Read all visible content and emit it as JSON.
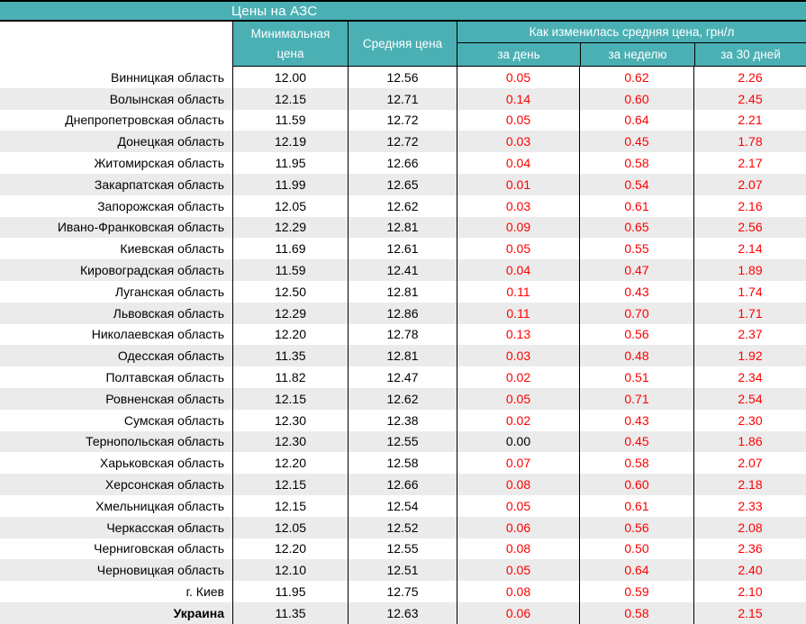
{
  "chart_data": {
    "type": "table",
    "title": "Цены на АЗС",
    "columns": {
      "min": "Минимальная цена",
      "avg": "Средняя цена",
      "group": "Как изменилась средняя цена, грн/л",
      "day": "за день",
      "week": "за неделю",
      "month": "за 30 дней"
    },
    "colors": {
      "accent_teal": "#4BB0B4",
      "stripe_gray": "#EBEBEB",
      "delta_red": "#FF0000",
      "zero_delta_black": "#000000"
    },
    "rows": [
      {
        "region": "Винницкая область",
        "min": "12.00",
        "avg": "12.56",
        "day": "0.05",
        "week": "0.62",
        "month": "2.26"
      },
      {
        "region": "Волынская область",
        "min": "12.15",
        "avg": "12.71",
        "day": "0.14",
        "week": "0.60",
        "month": "2.45"
      },
      {
        "region": "Днепропетровская область",
        "min": "11.59",
        "avg": "12.72",
        "day": "0.05",
        "week": "0.64",
        "month": "2.21"
      },
      {
        "region": "Донецкая область",
        "min": "12.19",
        "avg": "12.72",
        "day": "0.03",
        "week": "0.45",
        "month": "1.78"
      },
      {
        "region": "Житомирская область",
        "min": "11.95",
        "avg": "12.66",
        "day": "0.04",
        "week": "0.58",
        "month": "2.17"
      },
      {
        "region": "Закарпатская область",
        "min": "11.99",
        "avg": "12.65",
        "day": "0.01",
        "week": "0.54",
        "month": "2.07"
      },
      {
        "region": "Запорожская область",
        "min": "12.05",
        "avg": "12.62",
        "day": "0.03",
        "week": "0.61",
        "month": "2.16"
      },
      {
        "region": "Ивано-Франковская область",
        "min": "12.29",
        "avg": "12.81",
        "day": "0.09",
        "week": "0.65",
        "month": "2.56"
      },
      {
        "region": "Киевская область",
        "min": "11.69",
        "avg": "12.61",
        "day": "0.05",
        "week": "0.55",
        "month": "2.14"
      },
      {
        "region": "Кировоградская область",
        "min": "11.59",
        "avg": "12.41",
        "day": "0.04",
        "week": "0.47",
        "month": "1.89"
      },
      {
        "region": "Луганская область",
        "min": "12.50",
        "avg": "12.81",
        "day": "0.11",
        "week": "0.43",
        "month": "1.74"
      },
      {
        "region": "Львовская область",
        "min": "12.29",
        "avg": "12.86",
        "day": "0.11",
        "week": "0.70",
        "month": "1.71"
      },
      {
        "region": "Николаевская область",
        "min": "12.20",
        "avg": "12.78",
        "day": "0.13",
        "week": "0.56",
        "month": "2.37"
      },
      {
        "region": "Одесская область",
        "min": "11.35",
        "avg": "12.81",
        "day": "0.03",
        "week": "0.48",
        "month": "1.92"
      },
      {
        "region": "Полтавская область",
        "min": "11.82",
        "avg": "12.47",
        "day": "0.02",
        "week": "0.51",
        "month": "2.34"
      },
      {
        "region": "Ровненская область",
        "min": "12.15",
        "avg": "12.62",
        "day": "0.05",
        "week": "0.71",
        "month": "2.54"
      },
      {
        "region": "Сумская область",
        "min": "12.30",
        "avg": "12.38",
        "day": "0.02",
        "week": "0.43",
        "month": "2.30"
      },
      {
        "region": "Тернопольская область",
        "min": "12.30",
        "avg": "12.55",
        "day": "0.00",
        "week": "0.45",
        "month": "1.86"
      },
      {
        "region": "Харьковская область",
        "min": "12.20",
        "avg": "12.58",
        "day": "0.07",
        "week": "0.58",
        "month": "2.07"
      },
      {
        "region": "Херсонская область",
        "min": "12.15",
        "avg": "12.66",
        "day": "0.08",
        "week": "0.60",
        "month": "2.18"
      },
      {
        "region": "Хмельницкая область",
        "min": "12.15",
        "avg": "12.54",
        "day": "0.05",
        "week": "0.61",
        "month": "2.33"
      },
      {
        "region": "Черкасская область",
        "min": "12.05",
        "avg": "12.52",
        "day": "0.06",
        "week": "0.56",
        "month": "2.08"
      },
      {
        "region": "Черниговская область",
        "min": "12.20",
        "avg": "12.55",
        "day": "0.08",
        "week": "0.50",
        "month": "2.36"
      },
      {
        "region": "Черновицкая область",
        "min": "12.10",
        "avg": "12.51",
        "day": "0.05",
        "week": "0.64",
        "month": "2.40"
      },
      {
        "region": "г. Киев",
        "min": "11.95",
        "avg": "12.75",
        "day": "0.08",
        "week": "0.59",
        "month": "2.10"
      },
      {
        "region": "Украина",
        "min": "11.35",
        "avg": "12.63",
        "day": "0.06",
        "week": "0.58",
        "month": "2.15",
        "bold": true
      }
    ]
  }
}
